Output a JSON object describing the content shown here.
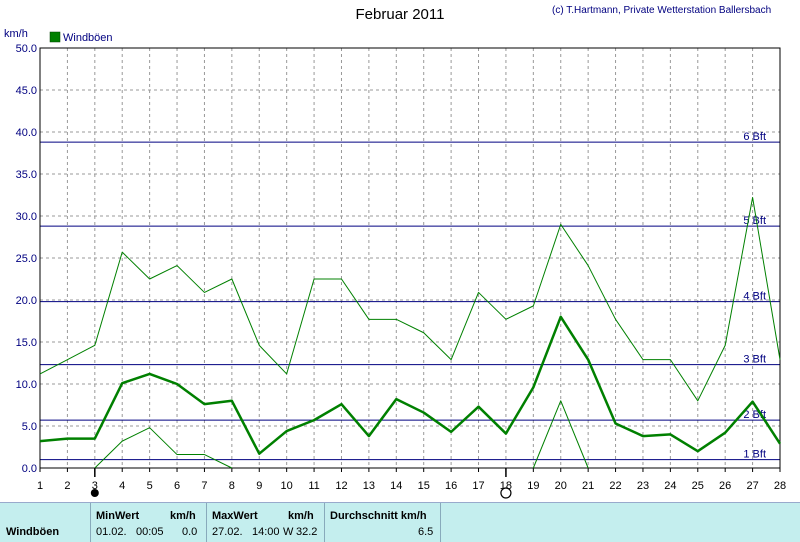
{
  "chart_data": {
    "type": "line",
    "title": "Februar 2011",
    "credit": "(c) T.Hartmann, Private Wetterstation Ballersbach",
    "ylabel": "km/h",
    "legend": {
      "label": "Windböen",
      "color": "#008000",
      "placement": "top-left"
    },
    "x": [
      1,
      2,
      3,
      4,
      5,
      6,
      7,
      8,
      9,
      10,
      11,
      12,
      13,
      14,
      15,
      16,
      17,
      18,
      19,
      20,
      21,
      22,
      23,
      24,
      25,
      26,
      27,
      28
    ],
    "xlim": [
      1,
      28
    ],
    "ylim": [
      0,
      50
    ],
    "yticks": [
      "0.0",
      "5.0",
      "10.0",
      "15.0",
      "20.0",
      "25.0",
      "30.0",
      "35.0",
      "40.0",
      "45.0",
      "50.0"
    ],
    "grid": true,
    "series": [
      {
        "role": "average",
        "values": [
          3.2,
          3.5,
          3.5,
          10.1,
          11.2,
          10.0,
          7.6,
          8.0,
          1.7,
          4.4,
          5.7,
          7.6,
          3.8,
          8.2,
          6.6,
          4.3,
          7.3,
          4.1,
          9.6,
          18.0,
          12.9,
          5.3,
          3.8,
          4.0,
          2.0,
          4.2,
          7.9,
          2.9
        ]
      },
      {
        "role": "maximum",
        "values": [
          11.2,
          12.9,
          14.6,
          25.7,
          22.5,
          24.1,
          20.9,
          22.5,
          14.6,
          11.2,
          22.5,
          22.5,
          17.7,
          17.7,
          16.1,
          12.9,
          20.9,
          17.7,
          19.3,
          29.0,
          24.1,
          17.7,
          12.9,
          12.9,
          8.0,
          14.6,
          32.2,
          12.9
        ]
      },
      {
        "role": "minimum",
        "values": [
          null,
          null,
          0.0,
          3.2,
          4.8,
          1.6,
          1.6,
          0.0,
          null,
          null,
          null,
          null,
          null,
          null,
          null,
          null,
          null,
          null,
          0.0,
          8.0,
          0.0,
          null,
          null,
          null,
          null,
          null,
          null,
          null
        ]
      }
    ],
    "beaufort": [
      {
        "label": "1 Bft",
        "value": 1.0
      },
      {
        "label": "2 Bft",
        "value": 5.7
      },
      {
        "label": "3 Bft",
        "value": 12.3
      },
      {
        "label": "4 Bft",
        "value": 19.8
      },
      {
        "label": "5 Bft",
        "value": 28.8
      },
      {
        "label": "6 Bft",
        "value": 38.8
      }
    ],
    "moon_phases": [
      {
        "day": 3,
        "phase": "new"
      },
      {
        "day": 18,
        "phase": "full"
      }
    ],
    "colors": {
      "line": "#008000",
      "beaufort": "#000080",
      "grid": "#999999"
    }
  },
  "footer": {
    "row_label": "Windböen",
    "min": {
      "header": "MinWert",
      "unit": "km/h",
      "date": "01.02.",
      "time": "00:05",
      "value": "0.0"
    },
    "max": {
      "header": "MaxWert",
      "unit": "km/h",
      "date": "27.02.",
      "time": "14:00",
      "dir": "W",
      "value": "32.2"
    },
    "avg": {
      "header": "Durchschnitt km/h",
      "value": "6.5"
    }
  }
}
